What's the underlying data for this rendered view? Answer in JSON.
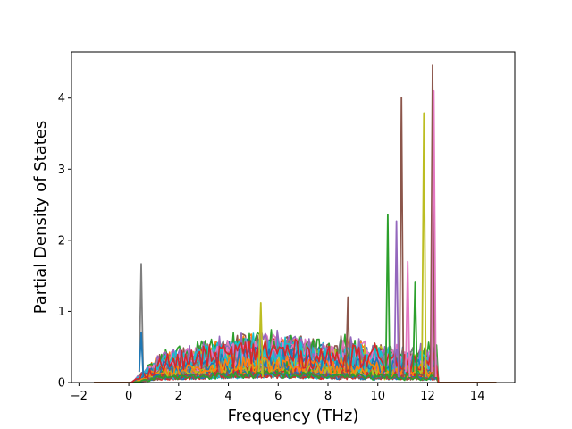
{
  "chart_data": {
    "type": "line",
    "title": "",
    "xlabel": "Frequency (THz)",
    "ylabel": "Partial Density of States",
    "xlim": [
      -2.3,
      15.5
    ],
    "ylim": [
      0,
      4.65
    ],
    "xticks": [
      -2,
      0,
      2,
      4,
      6,
      8,
      10,
      12,
      14
    ],
    "yticks": [
      0,
      1,
      2,
      3,
      4
    ],
    "grid": false,
    "legend": "none",
    "series_count": 64,
    "colors": [
      "#1f77b4",
      "#ff7f0e",
      "#2ca02c",
      "#d62728",
      "#9467bd",
      "#8c564b",
      "#e377c2",
      "#7f7f7f",
      "#bcbd22",
      "#17becf"
    ],
    "x_range_of_data": [
      -1.4,
      14.8
    ],
    "nonzero_x_range": [
      0.1,
      12.4
    ],
    "peaks": [
      {
        "x": 0.5,
        "y": 1.67,
        "color": "#7f7f7f"
      },
      {
        "x": 0.5,
        "y": 0.7,
        "color": "#1f77b4"
      },
      {
        "x": 5.3,
        "y": 1.12,
        "color": "#bcbd22"
      },
      {
        "x": 8.8,
        "y": 1.2,
        "color": "#8c564b"
      },
      {
        "x": 10.4,
        "y": 2.36,
        "color": "#2ca02c"
      },
      {
        "x": 10.75,
        "y": 2.27,
        "color": "#9467bd"
      },
      {
        "x": 10.95,
        "y": 4.01,
        "color": "#8c564b"
      },
      {
        "x": 11.2,
        "y": 1.7,
        "color": "#e377c2"
      },
      {
        "x": 11.5,
        "y": 1.42,
        "color": "#2ca02c"
      },
      {
        "x": 11.85,
        "y": 3.79,
        "color": "#bcbd22"
      },
      {
        "x": 12.2,
        "y": 4.46,
        "color": "#8c564b"
      },
      {
        "x": 12.25,
        "y": 4.1,
        "color": "#e377c2"
      }
    ]
  }
}
